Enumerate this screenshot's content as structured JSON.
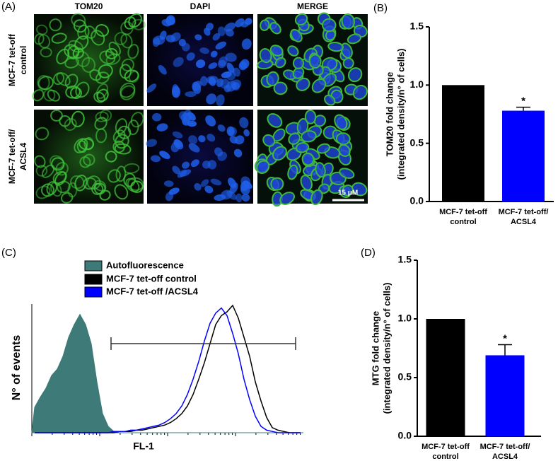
{
  "panels": [
    "(A)",
    "(B)",
    "(C)",
    "(D)"
  ],
  "microscopy": {
    "columns": [
      "TOM20",
      "DAPI",
      "MERGE"
    ],
    "rows": [
      [
        "MCF-7 tet-off",
        "control"
      ],
      [
        "MCF-7 tet-off/",
        "ACSL4"
      ]
    ],
    "scale_bar": "15 μM"
  },
  "chart_data": [
    {
      "type": "bar",
      "categories": [
        [
          "MCF-7 tet-off",
          "control"
        ],
        [
          "MCF-7 tet-off/",
          "ACSL4"
        ]
      ],
      "values": [
        1.0,
        0.78
      ],
      "errors": [
        0,
        0.03
      ],
      "colors": [
        "#000000",
        "#0000ff"
      ],
      "significance": [
        null,
        "*"
      ],
      "ylabel": [
        "TOM20 fold change",
        "(integrated density/n° of cells)"
      ],
      "ylim": [
        0,
        1.5
      ],
      "yticks": [
        {
          "value": 0,
          "label": "0.0"
        },
        {
          "value": 0.5,
          "label": "0.5"
        },
        {
          "value": 1,
          "label": "1.0"
        },
        {
          "value": 1.5,
          "label": "1.5"
        }
      ]
    },
    {
      "type": "histogram",
      "xlabel": "FL-1",
      "ylabel": "N° of events",
      "series": [
        {
          "name": "Autofluorescence",
          "color": "#3d7a78",
          "values": [
            20,
            28,
            35,
            45,
            50,
            60,
            75,
            85,
            93,
            85,
            70,
            40,
            15,
            5,
            1,
            0,
            0,
            0,
            0,
            0,
            0,
            0,
            0,
            0,
            0,
            0,
            0,
            0,
            0,
            0,
            0,
            0,
            0,
            0,
            0,
            0,
            0,
            0,
            0,
            0,
            0,
            0,
            0,
            0,
            0,
            0,
            0,
            0
          ]
        },
        {
          "name": "MCF-7 tet-off control",
          "color": "#000000",
          "values": [
            0,
            0,
            0,
            0,
            0,
            0,
            0,
            0,
            0,
            0,
            0,
            0,
            0,
            0,
            0,
            1,
            1,
            1,
            2,
            2,
            3,
            4,
            5,
            6,
            8,
            11,
            15,
            21,
            30,
            42,
            55,
            70,
            85,
            92,
            95,
            100,
            90,
            75,
            60,
            40,
            25,
            12,
            4,
            2,
            1,
            0,
            0,
            0
          ]
        },
        {
          "name": "MCF-7 tet-off /ACSL4",
          "color": "#0000ff",
          "values": [
            0,
            0,
            0,
            0,
            0,
            0,
            0,
            0,
            0,
            0,
            0,
            0,
            0,
            0,
            1,
            1,
            1,
            2,
            2,
            3,
            4,
            5,
            6,
            8,
            11,
            15,
            21,
            30,
            42,
            56,
            72,
            86,
            94,
            98,
            92,
            78,
            62,
            42,
            26,
            13,
            5,
            2,
            1,
            0,
            0,
            0,
            0,
            0
          ]
        }
      ]
    },
    {
      "type": "bar",
      "categories": [
        [
          "MCF-7 tet-off",
          "control"
        ],
        [
          "MCF-7 tet-off/",
          "ACSL4"
        ]
      ],
      "values": [
        1.0,
        0.69
      ],
      "errors": [
        0,
        0.09
      ],
      "colors": [
        "#000000",
        "#0000ff"
      ],
      "significance": [
        null,
        "*"
      ],
      "ylabel": [
        "MTG fold change",
        "(integrated density/n° of cells)"
      ],
      "ylim": [
        0,
        1.5
      ],
      "yticks": [
        {
          "value": 0,
          "label": "0.0"
        },
        {
          "value": 0.5,
          "label": "0.5"
        },
        {
          "value": 1,
          "label": "1.0"
        },
        {
          "value": 1.5,
          "label": "1.5"
        }
      ]
    }
  ]
}
